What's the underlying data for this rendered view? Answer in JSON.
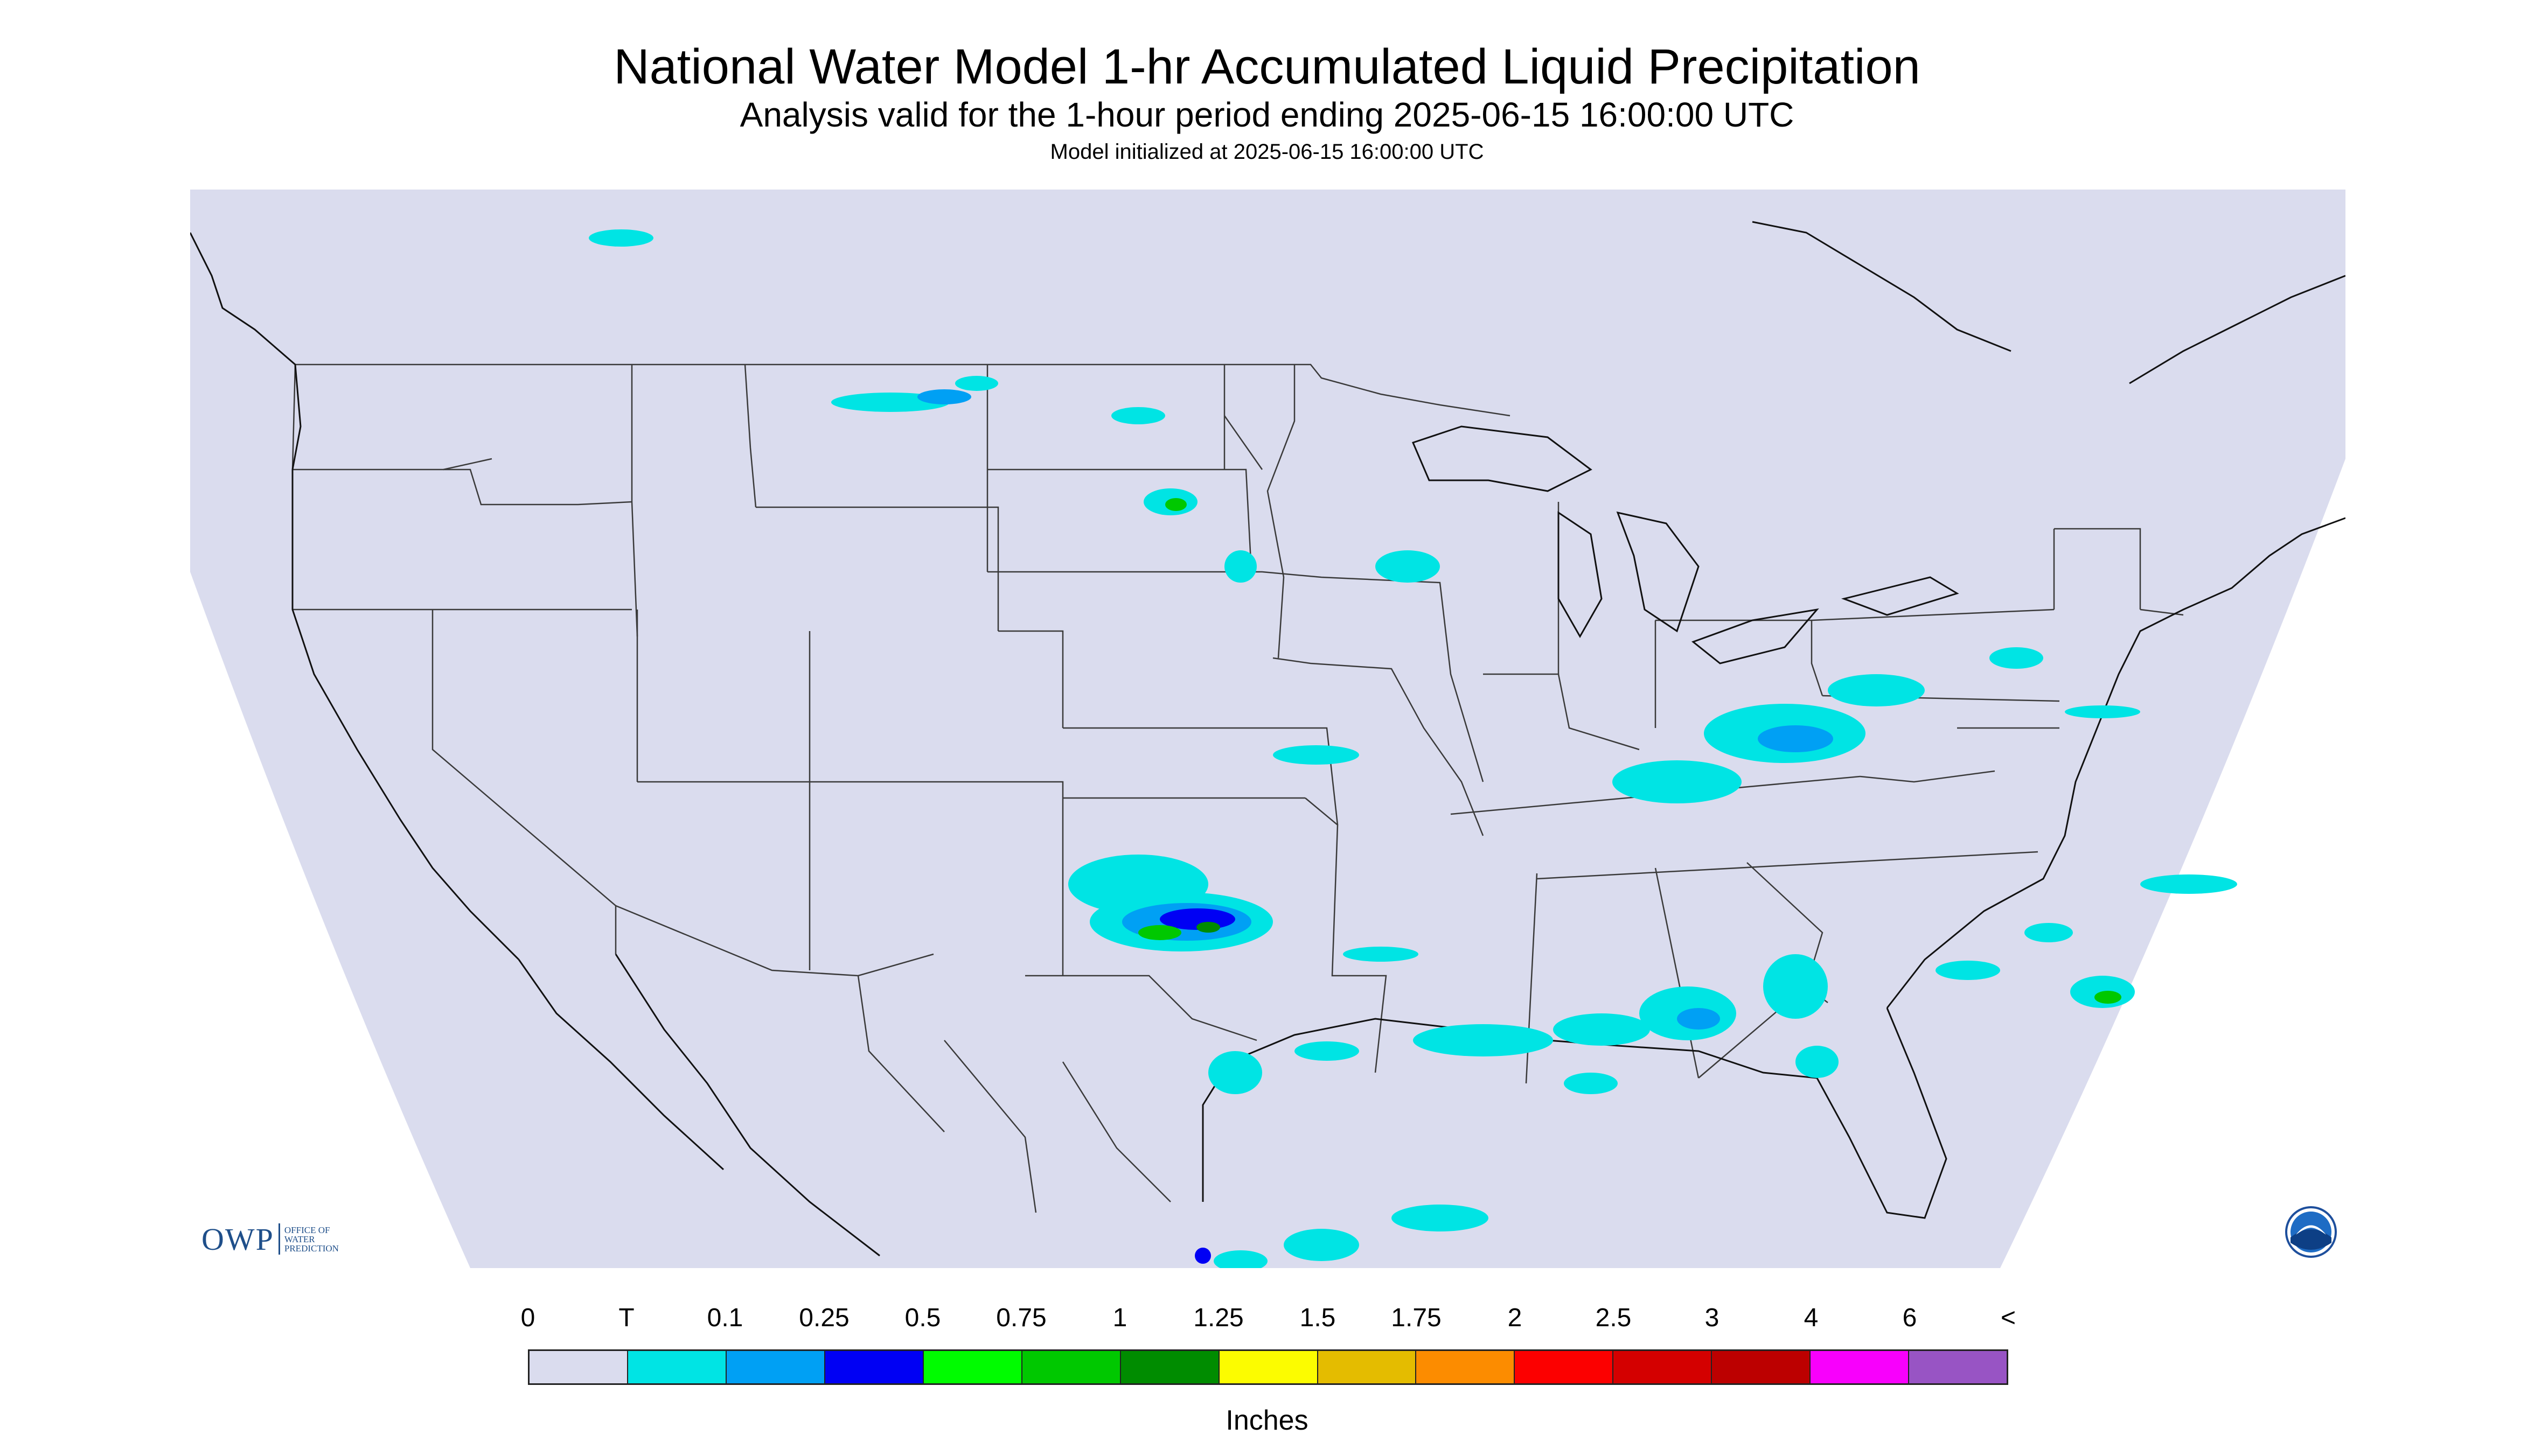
{
  "title": "National Water Model 1-hr Accumulated Liquid Precipitation",
  "subtitle": "Analysis valid for the 1-hour period ending 2025-06-15 16:00:00 UTC",
  "init_text": "Model initialized at 2025-06-15 16:00:00 UTC",
  "logo": {
    "letters": "OWP",
    "lines": [
      "OFFICE OF",
      "WATER",
      "PREDICTION"
    ],
    "color": "#1f4f8a"
  },
  "noaa_logo": {
    "text": "NOAA",
    "icon": "noaa-logo-icon"
  },
  "legend": {
    "ticks": [
      "0",
      "T",
      "0.1",
      "0.25",
      "0.5",
      "0.75",
      "1",
      "1.25",
      "1.5",
      "1.75",
      "2",
      "2.5",
      "3",
      "4",
      "6",
      "<"
    ],
    "colors": [
      "#dadcee",
      "#00e4e4",
      "#00a0f4",
      "#0000f4",
      "#00fc00",
      "#00c800",
      "#008c00",
      "#fcfc00",
      "#e4bc00",
      "#fc8c00",
      "#fc0000",
      "#d40000",
      "#bc0000",
      "#f800fc",
      "#9854c4"
    ],
    "units": "Inches"
  },
  "map_colors": {
    "background": "#dadcee",
    "outside": "#ffffff",
    "border": "#333333",
    "coast": "#111111"
  }
}
